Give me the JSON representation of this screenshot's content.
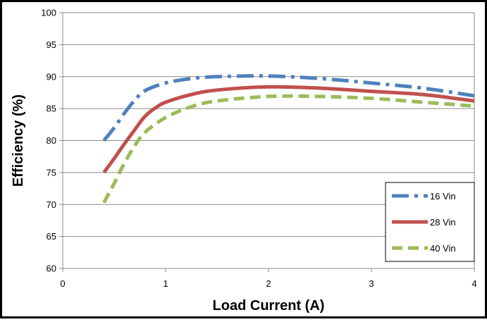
{
  "chart_data": {
    "type": "line",
    "title": "",
    "xlabel": "Load Current (A)",
    "ylabel": "Efficiency (%)",
    "xlim": [
      0,
      4
    ],
    "ylim": [
      60,
      100
    ],
    "xticks": [
      0,
      1,
      2,
      3,
      4
    ],
    "yticks": [
      60,
      65,
      70,
      75,
      80,
      85,
      90,
      95,
      100
    ],
    "xtick_labels": [
      "0",
      "1",
      "2",
      "3",
      "4"
    ],
    "ytick_labels": [
      "60",
      "65",
      "70",
      "75",
      "80",
      "85",
      "90",
      "95",
      "100"
    ],
    "grid": "horizontal",
    "legend_position": "bottom-right",
    "series": [
      {
        "name": "16 Vin",
        "color": "#4F81BD",
        "dash": "dash-dot",
        "points": [
          [
            0.4,
            80
          ],
          [
            0.5,
            82
          ],
          [
            0.6,
            84.3
          ],
          [
            0.7,
            86.3
          ],
          [
            0.8,
            87.8
          ],
          [
            1.0,
            89.0
          ],
          [
            1.25,
            89.7
          ],
          [
            1.5,
            90.0
          ],
          [
            2.0,
            90.1
          ],
          [
            2.5,
            89.7
          ],
          [
            3.0,
            89.0
          ],
          [
            3.5,
            88.2
          ],
          [
            4.0,
            87.0
          ]
        ]
      },
      {
        "name": "28 Vin",
        "color": "#C0504D",
        "dash": "solid",
        "points": [
          [
            0.4,
            75
          ],
          [
            0.5,
            77.2
          ],
          [
            0.6,
            79.5
          ],
          [
            0.7,
            81.7
          ],
          [
            0.8,
            83.8
          ],
          [
            0.9,
            85.1
          ],
          [
            1.0,
            86.0
          ],
          [
            1.25,
            87.2
          ],
          [
            1.5,
            87.9
          ],
          [
            2.0,
            88.4
          ],
          [
            2.5,
            88.2
          ],
          [
            3.0,
            87.7
          ],
          [
            3.5,
            87.2
          ],
          [
            4.0,
            86.2
          ]
        ]
      },
      {
        "name": "40 Vin",
        "color": "#9BBB59",
        "dash": "dash",
        "points": [
          [
            0.4,
            70.3
          ],
          [
            0.5,
            73.3
          ],
          [
            0.6,
            76.5
          ],
          [
            0.7,
            79.2
          ],
          [
            0.8,
            81.3
          ],
          [
            1.0,
            83.6
          ],
          [
            1.25,
            85.3
          ],
          [
            1.5,
            86.2
          ],
          [
            2.0,
            86.9
          ],
          [
            2.5,
            86.9
          ],
          [
            3.0,
            86.6
          ],
          [
            3.5,
            86.0
          ],
          [
            4.0,
            85.4
          ]
        ]
      }
    ]
  }
}
